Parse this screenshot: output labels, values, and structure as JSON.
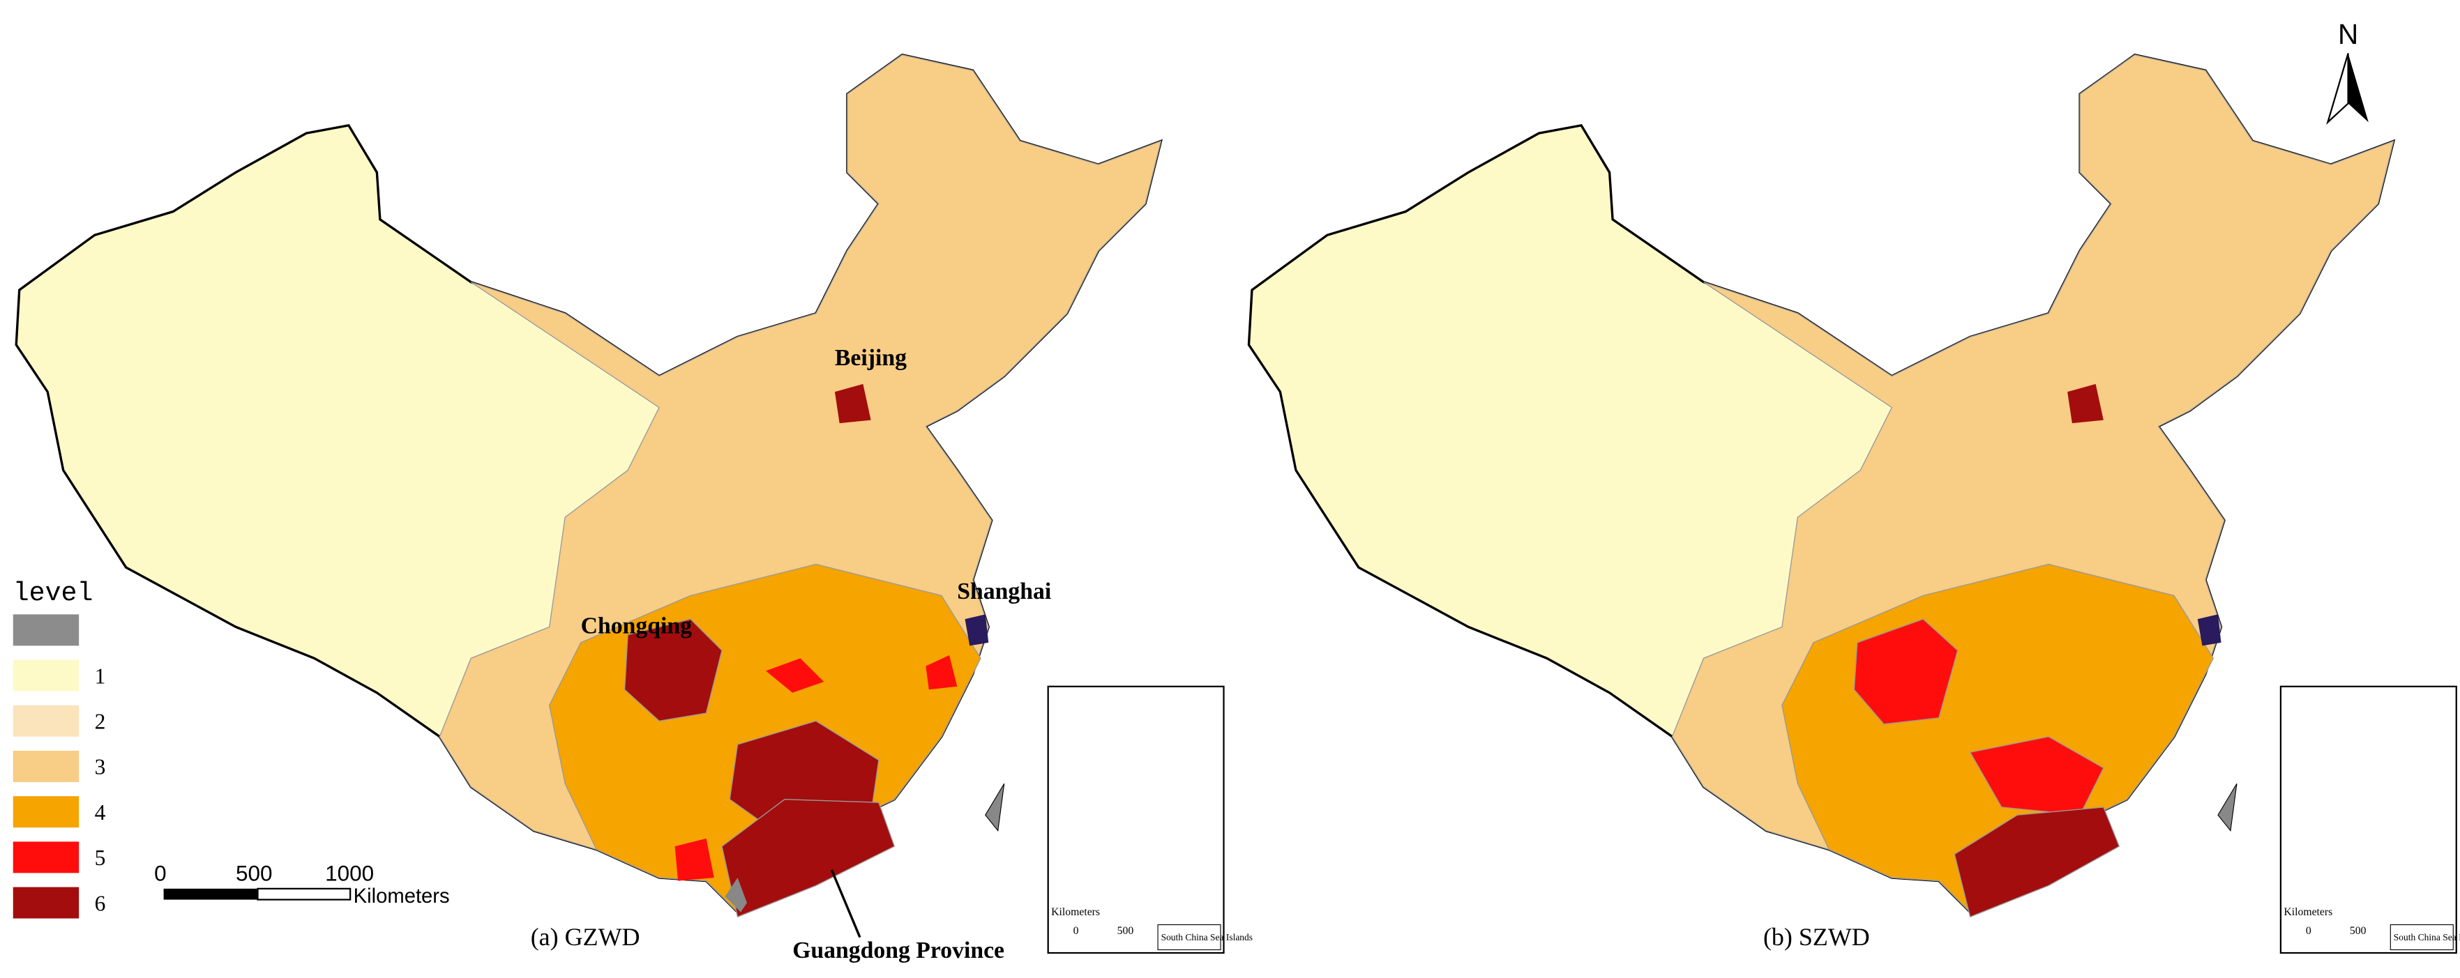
{
  "panels": [
    {
      "caption": "(a) GZWD",
      "labels": {
        "beijing": "Beijing",
        "shanghai": "Shanghai",
        "chongqing": "Chongqing",
        "guangdong": "Guangdong Province"
      }
    },
    {
      "caption": "(b) SZWD"
    }
  ],
  "legend": {
    "title": "level",
    "items": [
      {
        "label": null,
        "color": "#8c8c8c"
      },
      {
        "label": "1",
        "color": "#fdfac8"
      },
      {
        "label": "2",
        "color": "#fbe3bb"
      },
      {
        "label": "3",
        "color": "#f8cd85"
      },
      {
        "label": "4",
        "color": "#f5a400"
      },
      {
        "label": "5",
        "color": "#ff0d0d"
      },
      {
        "label": "6",
        "color": "#a30d0d"
      }
    ]
  },
  "scale_bar": {
    "ticks": [
      "0",
      "500",
      "1000"
    ],
    "unit": "Kilometers"
  },
  "inset": {
    "unit": "Kilometers",
    "ticks": [
      "0",
      "500"
    ],
    "caption": "South China Sea Islands"
  },
  "north": "N"
}
